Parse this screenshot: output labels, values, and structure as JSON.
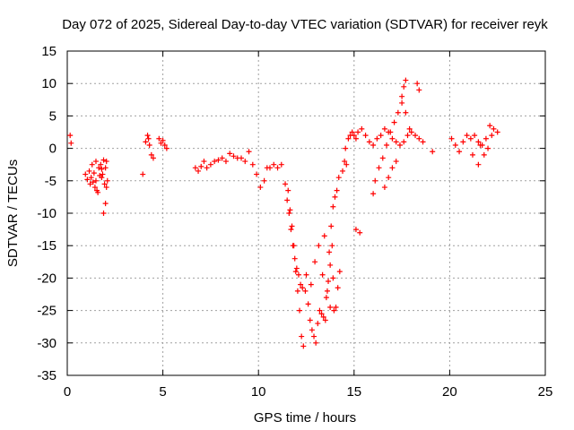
{
  "chart_data": {
    "type": "scatter",
    "title": "Day 072 of 2025, Sidereal Day-to-day VTEC variation (SDTVAR) for receiver reyk",
    "xlabel": "GPS time / hours",
    "ylabel": "SDTVAR / TECUs",
    "xlim": [
      0,
      25
    ],
    "ylim": [
      -35,
      15
    ],
    "xticks": [
      "0",
      "5",
      "10",
      "15",
      "20",
      "25"
    ],
    "yticks": [
      "15",
      "10",
      "5",
      "0",
      "-5",
      "-10",
      "-15",
      "-20",
      "-25",
      "-30",
      "-35"
    ],
    "grid": true,
    "marker": "+",
    "color": "#ff0000",
    "series": [
      {
        "name": "SDTVAR",
        "x": [
          0.15,
          0.2,
          0.95,
          1.05,
          1.15,
          1.25,
          1.35,
          1.45,
          1.55,
          1.65,
          1.75,
          1.85,
          1.95,
          2.05,
          1.3,
          1.4,
          1.5,
          1.6,
          1.7,
          1.8,
          1.9,
          2.0,
          2.1,
          1.2,
          1.5,
          1.8,
          2.0,
          1.9,
          2.05,
          3.95,
          4.1,
          4.2,
          4.3,
          4.4,
          4.5,
          4.25,
          4.8,
          4.9,
          5.0,
          5.1,
          5.2,
          6.7,
          6.85,
          7.0,
          7.15,
          7.3,
          7.5,
          7.7,
          7.9,
          8.1,
          8.3,
          8.5,
          8.7,
          8.9,
          9.1,
          9.3,
          9.5,
          9.7,
          9.9,
          10.1,
          10.3,
          10.45,
          10.6,
          10.8,
          11.0,
          11.2,
          11.4,
          11.5,
          11.6,
          11.7,
          11.8,
          11.9,
          12.0,
          12.1,
          12.2,
          12.3,
          12.45,
          12.6,
          12.7,
          12.8,
          12.9,
          13.0,
          13.1,
          13.2,
          13.3,
          13.4,
          13.5,
          13.6,
          13.7,
          13.8,
          13.9,
          14.0,
          14.1,
          14.2,
          14.4,
          14.6,
          11.55,
          11.65,
          11.75,
          11.85,
          11.95,
          12.05,
          12.15,
          12.25,
          12.35,
          12.5,
          12.75,
          12.95,
          13.15,
          13.35,
          13.55,
          13.75,
          13.95,
          14.05,
          14.15,
          14.25,
          13.85,
          13.9,
          13.75,
          13.45,
          13.65,
          14.5,
          14.55,
          14.7,
          14.8,
          14.9,
          15.0,
          15.1,
          15.2,
          15.4,
          15.6,
          15.8,
          16.0,
          16.2,
          16.4,
          16.6,
          16.8,
          17.0,
          17.2,
          17.4,
          17.6,
          17.8,
          18.0,
          18.2,
          18.4,
          18.6,
          16.0,
          16.1,
          16.3,
          16.5,
          16.7,
          16.9,
          17.1,
          17.3,
          17.5,
          17.7,
          17.9,
          16.6,
          16.8,
          17.0,
          17.2,
          15.1,
          15.3,
          17.5,
          17.6,
          17.7,
          18.3,
          18.4,
          19.1,
          20.1,
          20.3,
          20.5,
          20.7,
          20.9,
          21.1,
          21.3,
          21.5,
          21.7,
          21.9,
          22.1,
          22.3,
          22.5,
          21.5,
          21.8,
          22.0,
          22.2,
          21.2,
          21.6
        ],
        "y": [
          2.0,
          0.8,
          -4.0,
          -4.8,
          -3.5,
          -4.5,
          -5.2,
          -6.0,
          -6.5,
          -3.0,
          -2.5,
          -4.0,
          -5.5,
          -6.0,
          -2.5,
          -3.8,
          -5.0,
          -6.8,
          -4.2,
          -3.2,
          -1.8,
          -3.0,
          -5.0,
          -5.5,
          -2.0,
          -4.5,
          -8.5,
          -10.0,
          -2.0,
          -4.0,
          1.0,
          2.0,
          0.5,
          -1.0,
          -1.5,
          1.5,
          1.5,
          0.8,
          1.2,
          0.5,
          0.0,
          -3.0,
          -3.5,
          -2.8,
          -2.0,
          -3.0,
          -2.5,
          -2.0,
          -1.8,
          -1.5,
          -2.0,
          -0.8,
          -1.2,
          -1.5,
          -1.5,
          -2.0,
          -0.5,
          -2.5,
          -4.0,
          -6.0,
          -5.0,
          -3.0,
          -3.0,
          -2.5,
          -3.0,
          -2.5,
          -5.5,
          -8.0,
          -10.0,
          -12.5,
          -15.0,
          -17.0,
          -18.5,
          -19.5,
          -21.0,
          -21.5,
          -22.0,
          -24.0,
          -26.5,
          -28.0,
          -29.0,
          -30.0,
          -27.0,
          -25.0,
          -25.5,
          -26.0,
          -26.5,
          -22.0,
          -16.0,
          -12.0,
          -9.0,
          -7.5,
          -6.5,
          -4.5,
          -3.5,
          -2.5,
          -6.5,
          -9.5,
          -12.0,
          -15.0,
          -19.0,
          -22.0,
          -25.0,
          -29.0,
          -30.5,
          -19.5,
          -21.0,
          -17.5,
          -15.0,
          -19.5,
          -23.0,
          -24.5,
          -25.0,
          -24.5,
          -21.5,
          -19.0,
          -15.0,
          -20.0,
          -18.0,
          -13.5,
          -20.5,
          -2.0,
          0.0,
          1.5,
          2.0,
          2.5,
          2.0,
          1.5,
          2.5,
          3.0,
          2.0,
          1.0,
          0.5,
          1.5,
          2.0,
          3.0,
          2.5,
          1.5,
          1.0,
          0.5,
          1.0,
          2.0,
          2.5,
          2.0,
          1.5,
          1.0,
          -7.0,
          -5.0,
          -3.0,
          -1.5,
          0.5,
          2.5,
          4.0,
          5.5,
          7.0,
          5.5,
          3.0,
          -6.0,
          -4.5,
          -3.0,
          -2.0,
          -12.5,
          -13.0,
          8.0,
          9.5,
          10.5,
          10.0,
          9.0,
          -0.5,
          1.5,
          0.5,
          -0.5,
          1.0,
          2.0,
          1.5,
          2.0,
          1.0,
          0.5,
          1.5,
          3.5,
          3.0,
          2.5,
          -2.5,
          -1.0,
          0.0,
          2.0,
          -1.0,
          0.5
        ]
      }
    ]
  }
}
